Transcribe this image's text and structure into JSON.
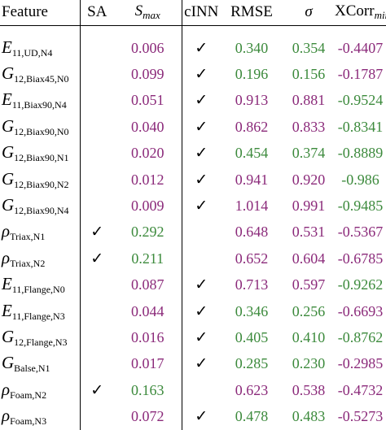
{
  "header": {
    "feature": "Feature",
    "sa": "SA",
    "smax_main": "S",
    "smax_sub": "max",
    "cinn": "cINN",
    "rmse": "RMSE",
    "sigma": "σ",
    "xcorr_main": "XCorr",
    "xcorr_sub": "min"
  },
  "check": "✓",
  "colors": {
    "magenta": "#8b2a7a",
    "green": "#3c8a3c"
  },
  "rows": [
    {
      "sym": "E",
      "sub": "11,UD,N4",
      "sa": "",
      "smax": "0.006",
      "smax_color": "magenta",
      "cinn": "✓",
      "rmse": "0.340",
      "rmse_color": "green",
      "sigma": "0.354",
      "sigma_color": "green",
      "xcorr": "-0.4407",
      "xcorr_color": "magenta"
    },
    {
      "sym": "G",
      "sub": "12,Biax45,N0",
      "sa": "",
      "smax": "0.099",
      "smax_color": "magenta",
      "cinn": "✓",
      "rmse": "0.196",
      "rmse_color": "green",
      "sigma": "0.156",
      "sigma_color": "green",
      "xcorr": "-0.1787",
      "xcorr_color": "magenta"
    },
    {
      "sym": "E",
      "sub": "11,Biax90,N4",
      "sa": "",
      "smax": "0.051",
      "smax_color": "magenta",
      "cinn": "✓",
      "rmse": "0.913",
      "rmse_color": "magenta",
      "sigma": "0.881",
      "sigma_color": "magenta",
      "xcorr": "-0.9524",
      "xcorr_color": "green"
    },
    {
      "sym": "G",
      "sub": "12,Biax90,N0",
      "sa": "",
      "smax": "0.040",
      "smax_color": "magenta",
      "cinn": "✓",
      "rmse": "0.862",
      "rmse_color": "magenta",
      "sigma": "0.833",
      "sigma_color": "magenta",
      "xcorr": "-0.8341",
      "xcorr_color": "green"
    },
    {
      "sym": "G",
      "sub": "12,Biax90,N1",
      "sa": "",
      "smax": "0.020",
      "smax_color": "magenta",
      "cinn": "✓",
      "rmse": "0.454",
      "rmse_color": "green",
      "sigma": "0.374",
      "sigma_color": "green",
      "xcorr": "-0.8889",
      "xcorr_color": "green"
    },
    {
      "sym": "G",
      "sub": "12,Biax90,N2",
      "sa": "",
      "smax": "0.012",
      "smax_color": "magenta",
      "cinn": "✓",
      "rmse": "0.941",
      "rmse_color": "magenta",
      "sigma": "0.920",
      "sigma_color": "magenta",
      "xcorr": "-0.986",
      "xcorr_color": "green"
    },
    {
      "sym": "G",
      "sub": "12,Biax90,N4",
      "sa": "",
      "smax": "0.009",
      "smax_color": "magenta",
      "cinn": "✓",
      "rmse": "1.014",
      "rmse_color": "magenta",
      "sigma": "0.991",
      "sigma_color": "magenta",
      "xcorr": "-0.9485",
      "xcorr_color": "green"
    },
    {
      "sym": "ρ",
      "sub": "Triax,N1",
      "sa": "✓",
      "smax": "0.292",
      "smax_color": "green",
      "cinn": "",
      "rmse": "0.648",
      "rmse_color": "magenta",
      "sigma": "0.531",
      "sigma_color": "magenta",
      "xcorr": "-0.5367",
      "xcorr_color": "magenta"
    },
    {
      "sym": "ρ",
      "sub": "Triax,N2",
      "sa": "✓",
      "smax": "0.211",
      "smax_color": "green",
      "cinn": "",
      "rmse": "0.652",
      "rmse_color": "magenta",
      "sigma": "0.604",
      "sigma_color": "magenta",
      "xcorr": "-0.6785",
      "xcorr_color": "magenta"
    },
    {
      "sym": "E",
      "sub": "11,Flange,N0",
      "sa": "",
      "smax": "0.087",
      "smax_color": "magenta",
      "cinn": "✓",
      "rmse": "0.713",
      "rmse_color": "magenta",
      "sigma": "0.597",
      "sigma_color": "magenta",
      "xcorr": "-0.9262",
      "xcorr_color": "green"
    },
    {
      "sym": "E",
      "sub": "11,Flange,N3",
      "sa": "",
      "smax": "0.044",
      "smax_color": "magenta",
      "cinn": "✓",
      "rmse": "0.346",
      "rmse_color": "green",
      "sigma": "0.256",
      "sigma_color": "green",
      "xcorr": "-0.6693",
      "xcorr_color": "magenta"
    },
    {
      "sym": "G",
      "sub": "12,Flange,N3",
      "sa": "",
      "smax": "0.016",
      "smax_color": "magenta",
      "cinn": "✓",
      "rmse": "0.405",
      "rmse_color": "green",
      "sigma": "0.410",
      "sigma_color": "green",
      "xcorr": "-0.8762",
      "xcorr_color": "green"
    },
    {
      "sym": "G",
      "sub": "Balse,N1",
      "sa": "",
      "smax": "0.017",
      "smax_color": "magenta",
      "cinn": "✓",
      "rmse": "0.285",
      "rmse_color": "green",
      "sigma": "0.230",
      "sigma_color": "green",
      "xcorr": "-0.2985",
      "xcorr_color": "magenta"
    },
    {
      "sym": "ρ",
      "sub": "Foam,N2",
      "sa": "✓",
      "smax": "0.163",
      "smax_color": "green",
      "cinn": "",
      "rmse": "0.623",
      "rmse_color": "magenta",
      "sigma": "0.538",
      "sigma_color": "magenta",
      "xcorr": "-0.4732",
      "xcorr_color": "magenta"
    },
    {
      "sym": "ρ",
      "sub": "Foam,N3",
      "sa": "",
      "smax": "0.072",
      "smax_color": "magenta",
      "cinn": "✓",
      "rmse": "0.478",
      "rmse_color": "green",
      "sigma": "0.483",
      "sigma_color": "green",
      "xcorr": "-0.5273",
      "xcorr_color": "magenta"
    }
  ]
}
